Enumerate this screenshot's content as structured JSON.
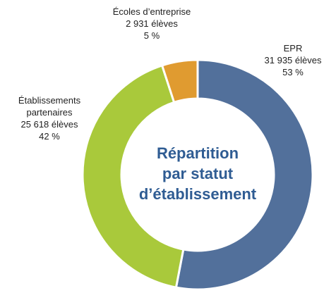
{
  "chart_data": {
    "type": "pie",
    "donut": true,
    "title": [
      "Répartition",
      "par statut",
      "d’établissement"
    ],
    "categories": [
      "EPR",
      "Établissements partenaires",
      "Écoles d’entreprise"
    ],
    "values": [
      53,
      42,
      5
    ],
    "value_labels": [
      "53 %",
      "42 %",
      "5 %"
    ],
    "details": [
      "31 935 élèves",
      "25 618 élèves",
      "2 931 élèves"
    ],
    "colors": [
      "#52709b",
      "#a9c93b",
      "#e09b30"
    ]
  }
}
